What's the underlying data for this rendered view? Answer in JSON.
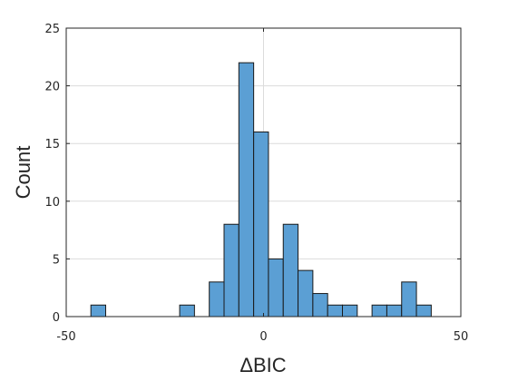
{
  "chart_data": {
    "type": "bar",
    "title": "",
    "xlabel": "ΔBIC",
    "ylabel": "Count",
    "xlim": [
      -50,
      50
    ],
    "ylim": [
      0,
      25
    ],
    "xticks": [
      -50,
      0,
      50
    ],
    "yticks": [
      0,
      5,
      10,
      15,
      20,
      25
    ],
    "grid": true,
    "bin_width": 3.75,
    "bin_edges_start": -43.75,
    "values": [
      1,
      0,
      0,
      0,
      0,
      0,
      1,
      0,
      3,
      8,
      22,
      16,
      5,
      8,
      4,
      2,
      1,
      1,
      0,
      1,
      1,
      3,
      1
    ],
    "colors": {
      "bar_fill": "#5b9fd4",
      "bar_edge": "#1a1a1a",
      "grid": "#dcdcdc"
    }
  }
}
